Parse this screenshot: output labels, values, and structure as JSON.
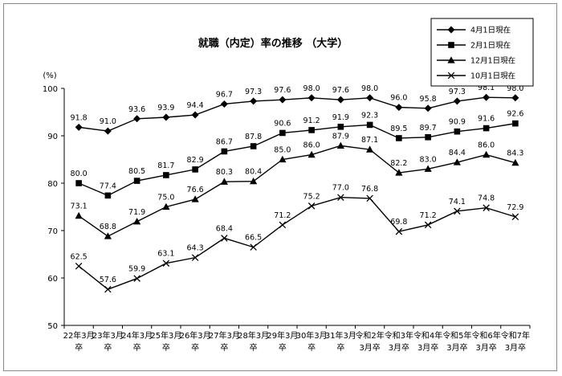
{
  "chart_data": {
    "type": "line",
    "title": "就職（内定）率の推移 （大学）",
    "ylabel": "(%)",
    "ylim": [
      50,
      100
    ],
    "yticks": [
      50,
      60,
      70,
      80,
      90,
      100
    ],
    "grid": false,
    "legend_position": "top-right",
    "categories": [
      {
        "line1": "22年3月",
        "line2": "卒"
      },
      {
        "line1": "23年3月",
        "line2": "卒"
      },
      {
        "line1": "24年3月",
        "line2": "卒"
      },
      {
        "line1": "25年3月",
        "line2": "卒"
      },
      {
        "line1": "26年3月",
        "line2": "卒"
      },
      {
        "line1": "27年3月",
        "line2": "卒"
      },
      {
        "line1": "28年3月",
        "line2": "卒"
      },
      {
        "line1": "29年3月",
        "line2": "卒"
      },
      {
        "line1": "30年3月",
        "line2": "卒"
      },
      {
        "line1": "31年3月",
        "line2": "卒"
      },
      {
        "line1": "令和2年",
        "line2": "3月卒"
      },
      {
        "line1": "令和3年",
        "line2": "3月卒"
      },
      {
        "line1": "令和4年",
        "line2": "3月卒"
      },
      {
        "line1": "令和5年",
        "line2": "3月卒"
      },
      {
        "line1": "令和6年",
        "line2": "3月卒"
      },
      {
        "line1": "令和7年",
        "line2": "3月卒"
      }
    ],
    "series": [
      {
        "name": "4月1日現在",
        "marker": "diamond",
        "values": [
          91.8,
          91.0,
          93.6,
          93.9,
          94.4,
          96.7,
          97.3,
          97.6,
          98.0,
          97.6,
          98.0,
          96.0,
          95.8,
          97.3,
          98.1,
          98.0
        ]
      },
      {
        "name": "2月1日現在",
        "marker": "square",
        "values": [
          80.0,
          77.4,
          80.5,
          81.7,
          82.9,
          86.7,
          87.8,
          90.6,
          91.2,
          91.9,
          92.3,
          89.5,
          89.7,
          90.9,
          91.6,
          92.6
        ]
      },
      {
        "name": "12月1日現在",
        "marker": "triangle",
        "values": [
          73.1,
          68.8,
          71.9,
          75.0,
          76.6,
          80.3,
          80.4,
          85.0,
          86.0,
          87.9,
          87.1,
          82.2,
          83.0,
          84.4,
          86.0,
          84.3
        ]
      },
      {
        "name": "10月1日現在",
        "marker": "x",
        "values": [
          62.5,
          57.6,
          59.9,
          63.1,
          64.3,
          68.4,
          66.5,
          71.2,
          75.2,
          77.0,
          76.8,
          69.8,
          71.2,
          74.1,
          74.8,
          72.9
        ]
      }
    ]
  }
}
